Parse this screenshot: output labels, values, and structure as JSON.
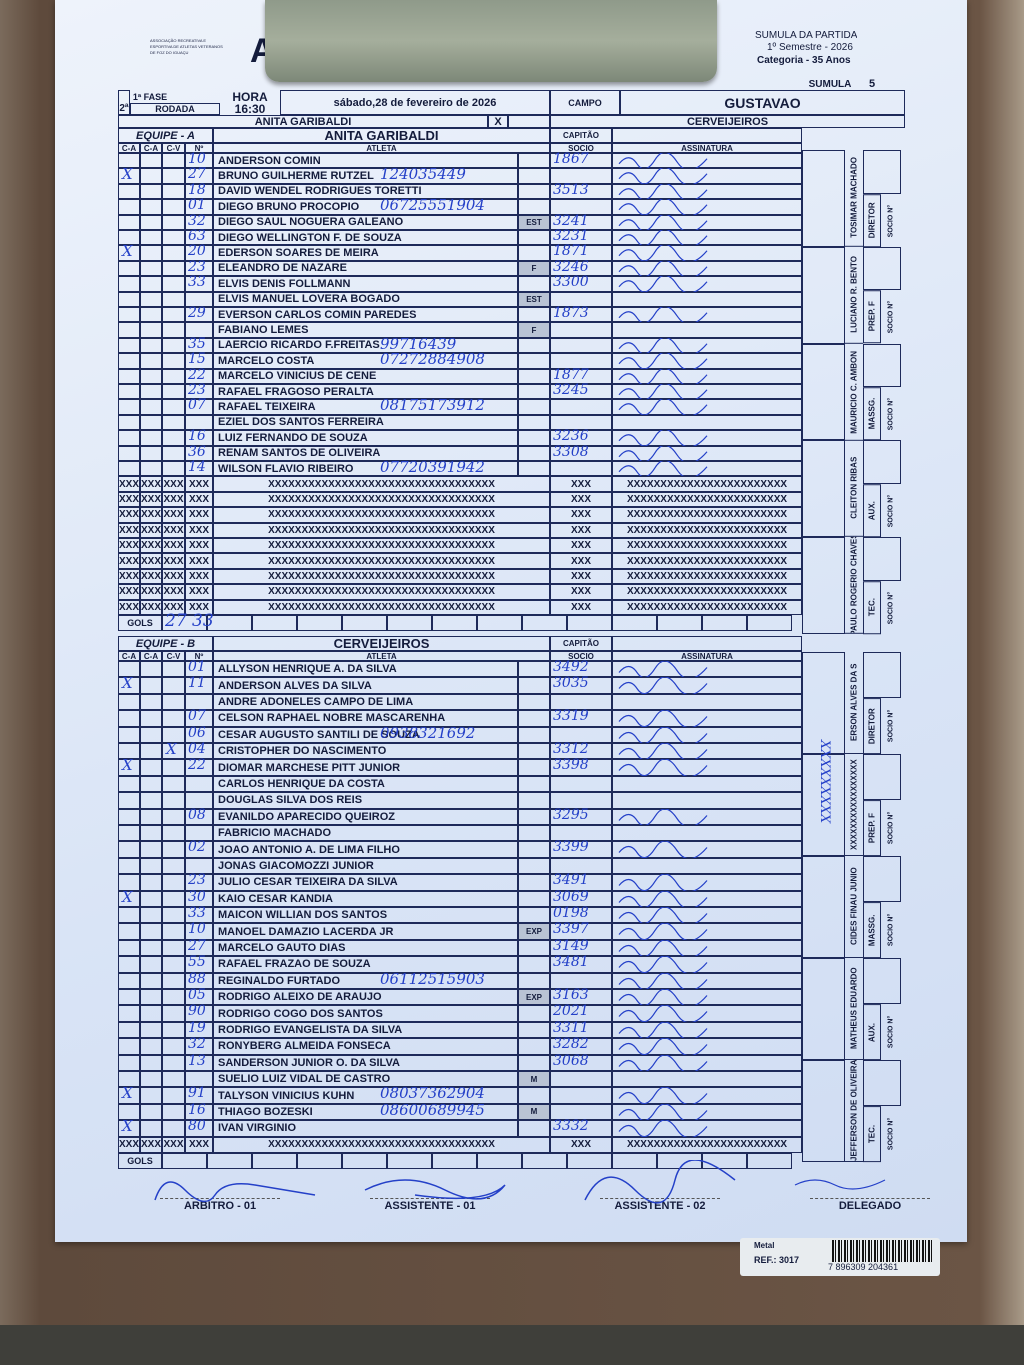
{
  "header": {
    "org_logo_text": "ASSOCIAÇÃO RECREATIVA E ESPORTIVA DE ATLETAS VETERANOS DE FOZ DO IGUAÇU",
    "logo_letter": "A",
    "title": "SUMULA DA PARTIDA",
    "semester": "1º Semestre - 2026",
    "category": "Categoria - 35 Anos",
    "sumula_label": "SUMULA",
    "sumula_number": "5",
    "round_num": "2ª",
    "phase": "1ª FASE",
    "round_label": "RODADA",
    "time_label": "HORA",
    "time": "16:30",
    "date": "sábado,28 de fevereiro de 2026",
    "field_label": "CAMPO",
    "field": "GUSTAVAO",
    "home": "ANITA GARIBALDI",
    "vs": "X",
    "away": "CERVEIJEIROS"
  },
  "labels": {
    "captain": "CAPITÃO",
    "ca": "C-A",
    "cv": "C-V",
    "num": "Nº",
    "athlete": "ATLETA",
    "socio": "SOCIO",
    "signature": "ASSINATURA",
    "goals": "GOLS",
    "socio_n": "SOCIO N°",
    "xrow_short": "XXX",
    "xrow_long": "XXXXXXXXXXXXXXXXXXXXXXXXXXXXXXXXXX",
    "xrow_sig": "XXXXXXXXXXXXXXXXXXXXXXXX"
  },
  "team_a": {
    "label": "EQUIPE - A",
    "name": "ANITA GARIBALDI",
    "goals_hw": "27 33",
    "players": [
      {
        "num": "10",
        "name": "ANDERSON COMIN",
        "tag": "",
        "socio": "1867",
        "note": "",
        "ca": "",
        "cv": ""
      },
      {
        "num": "27",
        "name": "BRUNO GUILHERME RUTZEL",
        "tag": "",
        "socio": "",
        "note": "124035449",
        "ca": "X",
        "cv": ""
      },
      {
        "num": "18",
        "name": "DAVID WENDEL RODRIGUES TORETTI",
        "tag": "",
        "socio": "3513",
        "note": "",
        "ca": "",
        "cv": ""
      },
      {
        "num": "01",
        "name": "DIEGO BRUNO PROCOPIO",
        "tag": "",
        "socio": "",
        "note": "06725551904",
        "ca": "",
        "cv": ""
      },
      {
        "num": "32",
        "name": "DIEGO SAUL NOGUERA GALEANO",
        "tag": "EST",
        "socio": "3241",
        "note": "",
        "ca": "",
        "cv": ""
      },
      {
        "num": "63",
        "name": "DIEGO WELLINGTON F. DE SOUZA",
        "tag": "",
        "socio": "3231",
        "note": "",
        "ca": "",
        "cv": ""
      },
      {
        "num": "20",
        "name": "EDERSON SOARES DE MEIRA",
        "tag": "",
        "socio": "1871",
        "note": "",
        "ca": "X",
        "cv": ""
      },
      {
        "num": "23",
        "name": "ELEANDRO DE NAZARE",
        "tag": "F",
        "socio": "3246",
        "note": "",
        "ca": "",
        "cv": ""
      },
      {
        "num": "33",
        "name": "ELVIS DENIS FOLLMANN",
        "tag": "",
        "socio": "3300",
        "note": "",
        "ca": "",
        "cv": ""
      },
      {
        "num": "",
        "name": "ELVIS MANUEL LOVERA BOGADO",
        "tag": "EST",
        "socio": "",
        "note": "",
        "ca": "",
        "cv": ""
      },
      {
        "num": "29",
        "name": "EVERSON CARLOS COMIN PAREDES",
        "tag": "",
        "socio": "1873",
        "note": "",
        "ca": "",
        "cv": ""
      },
      {
        "num": "",
        "name": "FABIANO LEMES",
        "tag": "F",
        "socio": "",
        "note": "",
        "ca": "",
        "cv": ""
      },
      {
        "num": "35",
        "name": "LAERCIO RICARDO F.FREITAS",
        "tag": "",
        "socio": "",
        "note": "99716439",
        "ca": "",
        "cv": ""
      },
      {
        "num": "15",
        "name": "MARCELO COSTA",
        "tag": "",
        "socio": "",
        "note": "07272884908",
        "ca": "",
        "cv": ""
      },
      {
        "num": "22",
        "name": "MARCELO VINICIUS DE CENE",
        "tag": "",
        "socio": "1877",
        "note": "",
        "ca": "",
        "cv": ""
      },
      {
        "num": "23",
        "name": "RAFAEL FRAGOSO PERALTA",
        "tag": "",
        "socio": "3245",
        "note": "",
        "ca": "",
        "cv": ""
      },
      {
        "num": "07",
        "name": "RAFAEL TEIXEIRA",
        "tag": "",
        "socio": "",
        "note": "08175173912",
        "ca": "",
        "cv": ""
      },
      {
        "num": "",
        "name": "EZIEL DOS SANTOS FERREIRA",
        "tag": "",
        "socio": "",
        "note": "",
        "ca": "",
        "cv": ""
      },
      {
        "num": "16",
        "name": "LUIZ FERNANDO DE SOUZA",
        "tag": "",
        "socio": "3236",
        "note": "",
        "ca": "",
        "cv": ""
      },
      {
        "num": "36",
        "name": "RENAM SANTOS DE OLIVEIRA",
        "tag": "",
        "socio": "3308",
        "note": "",
        "ca": "",
        "cv": ""
      },
      {
        "num": "14",
        "name": "WILSON FLAVIO RIBEIRO",
        "tag": "",
        "socio": "",
        "note": "07720391942",
        "ca": "",
        "cv": ""
      }
    ],
    "staff": [
      {
        "role": "DIRETOR",
        "name": "TOSIMAR MACHADO"
      },
      {
        "role": "PREP. F",
        "name": "LUCIANO R. BENTO"
      },
      {
        "role": "MASSG.",
        "name": "MAURICIO C. AMBON"
      },
      {
        "role": "AUX.",
        "name": "CLEITON RIBAS"
      },
      {
        "role": "TEC.",
        "name": "PAULO ROGERIO CHAVES"
      }
    ]
  },
  "team_b": {
    "label": "EQUIPE - B",
    "name": "CERVEIJEIROS",
    "goals_hw": "",
    "players": [
      {
        "num": "01",
        "name": "ALLYSON HENRIQUE A. DA SILVA",
        "tag": "",
        "socio": "3492",
        "note": "",
        "ca": "",
        "cv": ""
      },
      {
        "num": "11",
        "name": "ANDERSON ALVES DA SILVA",
        "tag": "",
        "socio": "3035",
        "note": "",
        "ca": "X",
        "cv": ""
      },
      {
        "num": "",
        "name": "ANDRE ADONELES CAMPO DE LIMA",
        "tag": "",
        "socio": "",
        "note": "",
        "ca": "",
        "cv": ""
      },
      {
        "num": "07",
        "name": "CELSON RAPHAEL NOBRE MASCARENHA",
        "tag": "",
        "socio": "3319",
        "note": "",
        "ca": "",
        "cv": ""
      },
      {
        "num": "06",
        "name": "CESAR AUGUSTO SANTILI DE SOUZA",
        "tag": "",
        "socio": "",
        "note": "0938321692",
        "ca": "",
        "cv": ""
      },
      {
        "num": "04",
        "name": "CRISTOPHER DO NASCIMENTO",
        "tag": "",
        "socio": "3312",
        "note": "",
        "ca": "",
        "cv": "X"
      },
      {
        "num": "22",
        "name": "DIOMAR MARCHESE PITT JUNIOR",
        "tag": "",
        "socio": "3398",
        "note": "",
        "ca": "X",
        "cv": ""
      },
      {
        "num": "",
        "name": "CARLOS HENRIQUE DA COSTA",
        "tag": "",
        "socio": "",
        "note": "",
        "ca": "",
        "cv": ""
      },
      {
        "num": "",
        "name": "DOUGLAS SILVA DOS REIS",
        "tag": "",
        "socio": "",
        "note": "",
        "ca": "",
        "cv": ""
      },
      {
        "num": "08",
        "name": "EVANILDO APARECIDO QUEIROZ",
        "tag": "",
        "socio": "3295",
        "note": "",
        "ca": "",
        "cv": ""
      },
      {
        "num": "",
        "name": "FABRICIO MACHADO",
        "tag": "",
        "socio": "",
        "note": "",
        "ca": "",
        "cv": ""
      },
      {
        "num": "02",
        "name": "JOAO ANTONIO A. DE LIMA FILHO",
        "tag": "",
        "socio": "3399",
        "note": "",
        "ca": "",
        "cv": ""
      },
      {
        "num": "",
        "name": "JONAS GIACOMOZZI JUNIOR",
        "tag": "",
        "socio": "",
        "note": "",
        "ca": "",
        "cv": ""
      },
      {
        "num": "23",
        "name": "JULIO CESAR TEIXEIRA DA SILVA",
        "tag": "",
        "socio": "3491",
        "note": "",
        "ca": "",
        "cv": ""
      },
      {
        "num": "30",
        "name": "KAIO CESAR KANDIA",
        "tag": "",
        "socio": "3069",
        "note": "",
        "ca": "X",
        "cv": ""
      },
      {
        "num": "33",
        "name": "MAICON WILLIAN DOS SANTOS",
        "tag": "",
        "socio": "0198",
        "note": "",
        "ca": "",
        "cv": ""
      },
      {
        "num": "10",
        "name": "MANOEL DAMAZIO LACERDA JR",
        "tag": "EXP",
        "socio": "3397",
        "note": "",
        "ca": "",
        "cv": ""
      },
      {
        "num": "27",
        "name": "MARCELO GAUTO DIAS",
        "tag": "",
        "socio": "3149",
        "note": "",
        "ca": "",
        "cv": ""
      },
      {
        "num": "55",
        "name": "RAFAEL FRAZAO DE SOUZA",
        "tag": "",
        "socio": "3481",
        "note": "",
        "ca": "",
        "cv": ""
      },
      {
        "num": "88",
        "name": "REGINALDO FURTADO",
        "tag": "",
        "socio": "",
        "note": "06112515903",
        "ca": "",
        "cv": ""
      },
      {
        "num": "05",
        "name": "RODRIGO ALEIXO DE ARAUJO",
        "tag": "EXP",
        "socio": "3163",
        "note": "",
        "ca": "",
        "cv": ""
      },
      {
        "num": "90",
        "name": "RODRIGO COGO DOS SANTOS",
        "tag": "",
        "socio": "2021",
        "note": "",
        "ca": "",
        "cv": ""
      },
      {
        "num": "19",
        "name": "RODRIGO EVANGELISTA DA SILVA",
        "tag": "",
        "socio": "3311",
        "note": "",
        "ca": "",
        "cv": ""
      },
      {
        "num": "32",
        "name": "RONYBERG ALMEIDA FONSECA",
        "tag": "",
        "socio": "3282",
        "note": "",
        "ca": "",
        "cv": ""
      },
      {
        "num": "13",
        "name": "SANDERSON JUNIOR O. DA SILVA",
        "tag": "",
        "socio": "3068",
        "note": "",
        "ca": "",
        "cv": ""
      },
      {
        "num": "",
        "name": "SUELIO LUIZ VIDAL DE CASTRO",
        "tag": "M",
        "socio": "",
        "note": "",
        "ca": "",
        "cv": ""
      },
      {
        "num": "91",
        "name": "TALYSON VINICIUS KUHN",
        "tag": "",
        "socio": "",
        "note": "08037362904",
        "ca": "X",
        "cv": ""
      },
      {
        "num": "16",
        "name": "THIAGO BOZESKI",
        "tag": "M",
        "socio": "",
        "note": "08600689945",
        "ca": "",
        "cv": ""
      },
      {
        "num": "80",
        "name": "IVAN VIRGINIO",
        "tag": "",
        "socio": "3332",
        "note": "",
        "ca": "X",
        "cv": ""
      }
    ],
    "staff": [
      {
        "role": "DIRETOR",
        "name": "ERSON ALVES DA S"
      },
      {
        "role": "PREP. F",
        "name": "XXXXXXXXXXXXXXXXX"
      },
      {
        "role": "MASSG.",
        "name": "CIDES FINAU JUNIO"
      },
      {
        "role": "AUX.",
        "name": "MATHEUS EDUARDO"
      },
      {
        "role": "TEC.",
        "name": "JEFFERSON DE OLIVEIRA"
      }
    ],
    "prep_hw": "XXXXXXXXX"
  },
  "footer": {
    "referee": "ARBITRO - 01",
    "assistant1": "ASSISTENTE - 01",
    "assistant2": "ASSISTENTE - 02",
    "delegate": "DELEGADO"
  },
  "clipboard_label": {
    "material": "Metal",
    "ref": "REF.: 3017",
    "barcode": "7 896309 204361"
  },
  "colors": {
    "paper": "#dde7f8",
    "ink": "#141c3c",
    "pen": "#2440c8"
  }
}
